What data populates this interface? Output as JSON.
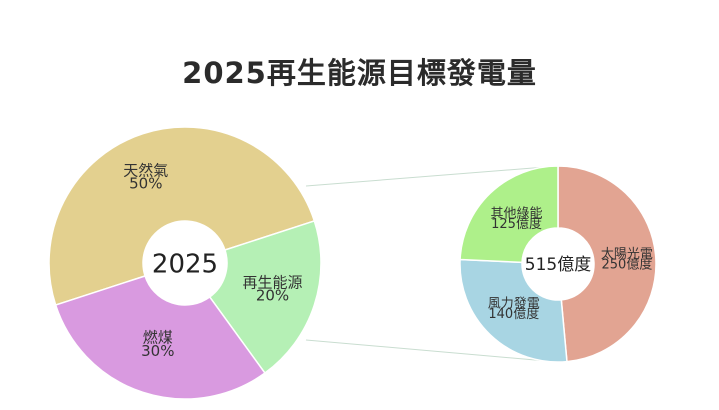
{
  "chart_data": [
    {
      "type": "pie",
      "title": "2025再生能源目標發電量",
      "center_label": "2025",
      "slices": [
        {
          "name": "天然氣",
          "value": 50,
          "display": "50%",
          "color": "#e3d08f"
        },
        {
          "name": "再生能源",
          "value": 20,
          "display": "20%",
          "color": "#b5f0b5"
        },
        {
          "name": "燃煤",
          "value": 30,
          "display": "30%",
          "color": "#d99ae0"
        }
      ]
    },
    {
      "type": "pie",
      "title": "",
      "center_label": "515億度",
      "slices": [
        {
          "name": "太陽光電",
          "value": 250,
          "display": "250億度",
          "color": "#e2a492"
        },
        {
          "name": "風力發電",
          "value": 140,
          "display": "140億度",
          "color": "#a8d5e3"
        },
        {
          "name": "其他綠能",
          "value": 125,
          "display": "125億度",
          "color": "#aef08a"
        }
      ]
    }
  ]
}
